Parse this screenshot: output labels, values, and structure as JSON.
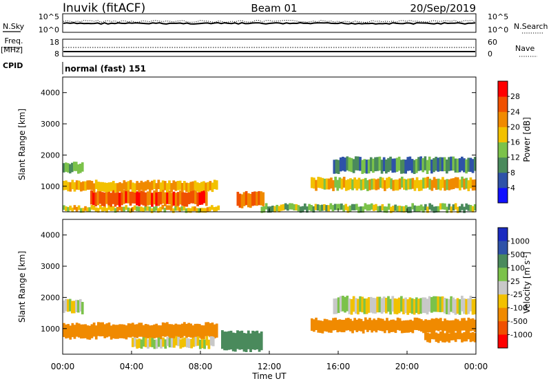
{
  "header": {
    "station": "Inuvik (fitACF)",
    "beam": "Beam 01",
    "date": "20/Sep/2019"
  },
  "noise_panel": {
    "left_label": "N.Sky",
    "right_label": "N.Search",
    "left_ticks": [
      "10^5",
      "10^0"
    ],
    "right_ticks": [
      "10^5",
      "10^0"
    ]
  },
  "freq_panel": {
    "label_line1": "Freq.",
    "label_line2": "[MHz]",
    "right_label": "Nave",
    "left_ticks": [
      "18",
      "8"
    ],
    "right_ticks": [
      "60",
      "0"
    ]
  },
  "cpid_panel": {
    "label": "CPID",
    "value": "normal (fast) 151"
  },
  "colors": {
    "power_scale": [
      "#1010ff",
      "#2e52a8",
      "#4a8a5c",
      "#7bc24a",
      "#f2c100",
      "#f08a00",
      "#f05000",
      "#ff0000"
    ],
    "velocity_scale": [
      "#ff0000",
      "#f05000",
      "#f08a00",
      "#f2c100",
      "#c8c8c8",
      "#7bc24a",
      "#4a8a5c",
      "#2e52a8",
      "#1a2ac0"
    ]
  },
  "chart_data": [
    {
      "type": "heatmap",
      "title": "",
      "xlabel": "",
      "ylabel": "Slant Range [km]",
      "xlim": [
        "00:00",
        "24:00"
      ],
      "ylim": [
        180,
        4500
      ],
      "yticks": [
        "1000",
        "2000",
        "3000",
        "4000"
      ],
      "grid": false,
      "colorbar": {
        "label": "Power [dB]",
        "ticks": [
          "4",
          "8",
          "12",
          "16",
          "20",
          "24",
          "28"
        ],
        "range": [
          0,
          32
        ]
      },
      "bands": [
        {
          "t_start": 0.0,
          "t_end": 9.1,
          "range_km": [
            200,
            350
          ],
          "level": 18
        },
        {
          "t_start": 1.6,
          "t_end": 8.4,
          "range_km": [
            400,
            850
          ],
          "level": 26
        },
        {
          "t_start": 0.0,
          "t_end": 9.0,
          "range_km": [
            850,
            1150
          ],
          "level": 20
        },
        {
          "t_start": 0.0,
          "t_end": 1.2,
          "range_km": [
            1450,
            1750
          ],
          "level": 12
        },
        {
          "t_start": 10.1,
          "t_end": 11.7,
          "range_km": [
            350,
            800
          ],
          "level": 24
        },
        {
          "t_start": 14.4,
          "t_end": 24.0,
          "range_km": [
            900,
            1250
          ],
          "level": 18
        },
        {
          "t_start": 15.7,
          "t_end": 24.0,
          "range_km": [
            1450,
            1900
          ],
          "level": 10
        },
        {
          "t_start": 11.5,
          "t_end": 24.0,
          "range_km": [
            200,
            400
          ],
          "level": 14
        }
      ]
    },
    {
      "type": "heatmap",
      "title": "",
      "xlabel": "Time UT",
      "ylabel": "Slant Range [km]",
      "xlim": [
        "00:00",
        "24:00"
      ],
      "ylim": [
        180,
        4500
      ],
      "xticks": [
        "00:00",
        "04:00",
        "08:00",
        "12:00",
        "16:00",
        "20:00",
        "00:00"
      ],
      "yticks": [
        "1000",
        "2000",
        "3000",
        "4000"
      ],
      "grid": false,
      "colorbar": {
        "label": "Velocity [m s-1]",
        "ticks": [
          "1000",
          "500",
          "100",
          "25",
          "-25",
          "-100",
          "-500",
          "-1000"
        ]
      },
      "bands": [
        {
          "t_start": 0.0,
          "t_end": 9.0,
          "range_km": [
            700,
            1150
          ],
          "velocity": -300
        },
        {
          "t_start": 4.0,
          "t_end": 8.8,
          "range_km": [
            400,
            700
          ],
          "velocity": 0
        },
        {
          "t_start": 0.0,
          "t_end": 1.2,
          "range_km": [
            1500,
            1900
          ],
          "velocity": 0
        },
        {
          "t_start": 9.2,
          "t_end": 11.6,
          "range_km": [
            300,
            900
          ],
          "velocity": 200
        },
        {
          "t_start": 14.4,
          "t_end": 24.0,
          "range_km": [
            900,
            1300
          ],
          "velocity": -200
        },
        {
          "t_start": 15.7,
          "t_end": 24.0,
          "range_km": [
            1500,
            2000
          ],
          "velocity": 0
        },
        {
          "t_start": 21.0,
          "t_end": 24.0,
          "range_km": [
            600,
            900
          ],
          "velocity": -300
        }
      ]
    }
  ]
}
